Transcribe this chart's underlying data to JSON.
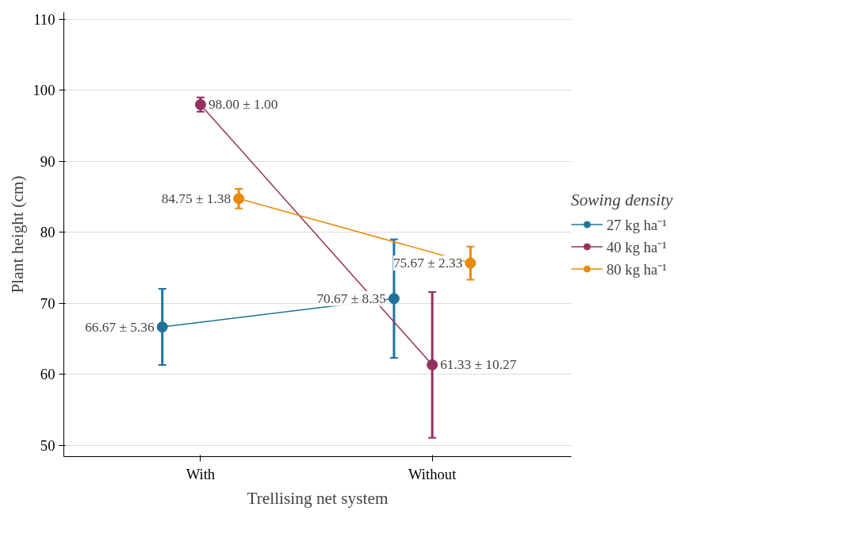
{
  "chart_data": {
    "type": "line",
    "xlabel": "Trellising net system",
    "ylabel": "Plant height (cm)",
    "legend_title": "Sowing density",
    "categories": [
      "With",
      "Without"
    ],
    "series": [
      {
        "name": "27 kg ha⁻¹",
        "color": "#1f7399",
        "values": [
          66.67,
          70.67
        ],
        "errors": [
          5.36,
          8.35
        ],
        "value_labels": [
          "66.67 ± 5.36",
          "70.67 ± 8.35"
        ]
      },
      {
        "name": "40 kg ha⁻¹",
        "color": "#93325e",
        "values": [
          98.0,
          61.33
        ],
        "errors": [
          1.0,
          10.27
        ],
        "value_labels": [
          "98.00 ± 1.00",
          "61.33 ± 10.27"
        ]
      },
      {
        "name": "80 kg ha⁻¹",
        "color": "#e88a0c",
        "values": [
          84.75,
          75.67
        ],
        "errors": [
          1.38,
          2.33
        ],
        "value_labels": [
          "84.75 ± 1.38",
          "75.67 ± 2.33"
        ]
      }
    ],
    "ylim": [
      48.4,
      111
    ],
    "yticks": [
      50,
      60,
      70,
      80,
      90,
      100,
      110
    ],
    "grid": "y",
    "legend": "right",
    "marker": "circle",
    "line_style": "solid"
  }
}
